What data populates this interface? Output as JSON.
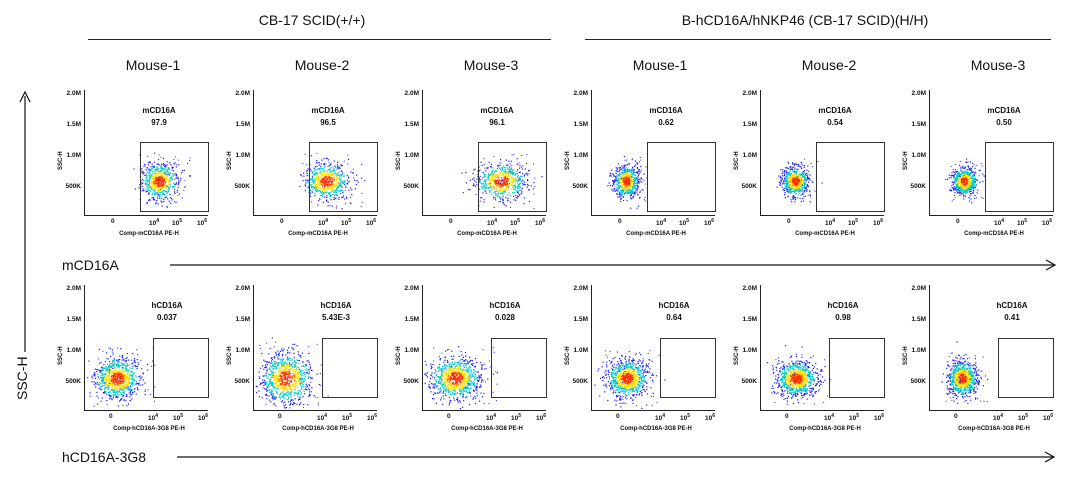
{
  "groups": [
    {
      "title": "CB-17 SCID(+/+)"
    },
    {
      "title": "B-hCD16A/hNKP46 (CB-17 SCID)(H/H)"
    }
  ],
  "mouse_labels": [
    "Mouse-1",
    "Mouse-2",
    "Mouse-3",
    "Mouse-1",
    "Mouse-2",
    "Mouse-3"
  ],
  "y_axis_outer": "SSC-H",
  "row_axis_labels": [
    "mCD16A",
    "hCD16A-3G8"
  ],
  "panel_axes": {
    "y_title": "SSC-H",
    "y_ticks": [
      "2.0M",
      "1.5M",
      "1.0M",
      "500K"
    ],
    "x_ticks": [
      "0",
      "10",
      "10",
      "10"
    ],
    "x_tick_exponents": [
      "",
      "4",
      "5",
      "6"
    ],
    "x_titles": [
      "Comp-mCD16A PE-H",
      "Comp-hCD16A-3G8 PE-H"
    ]
  },
  "colors": {
    "density_low": "#1a1aff",
    "density_mid": "#00c8c8",
    "density_high": "#ffe000",
    "density_peak": "#ff3000"
  },
  "chart_data": [
    {
      "type": "scatter",
      "row": "mCD16A",
      "group": "CB-17 SCID(+/+)",
      "mouse": "Mouse-1",
      "gate_label": "mCD16A",
      "gate_percent": "97.9"
    },
    {
      "type": "scatter",
      "row": "mCD16A",
      "group": "CB-17 SCID(+/+)",
      "mouse": "Mouse-2",
      "gate_label": "mCD16A",
      "gate_percent": "96.5"
    },
    {
      "type": "scatter",
      "row": "mCD16A",
      "group": "CB-17 SCID(+/+)",
      "mouse": "Mouse-3",
      "gate_label": "mCD16A",
      "gate_percent": "96.1"
    },
    {
      "type": "scatter",
      "row": "mCD16A",
      "group": "B-hCD16A/hNKP46 (CB-17 SCID)(H/H)",
      "mouse": "Mouse-1",
      "gate_label": "mCD16A",
      "gate_percent": "0.62"
    },
    {
      "type": "scatter",
      "row": "mCD16A",
      "group": "B-hCD16A/hNKP46 (CB-17 SCID)(H/H)",
      "mouse": "Mouse-2",
      "gate_label": "mCD16A",
      "gate_percent": "0.54"
    },
    {
      "type": "scatter",
      "row": "mCD16A",
      "group": "B-hCD16A/hNKP46 (CB-17 SCID)(H/H)",
      "mouse": "Mouse-3",
      "gate_label": "mCD16A",
      "gate_percent": "0.50"
    },
    {
      "type": "scatter",
      "row": "hCD16A-3G8",
      "group": "CB-17 SCID(+/+)",
      "mouse": "Mouse-1",
      "gate_label": "hCD16A",
      "gate_percent": "0.037"
    },
    {
      "type": "scatter",
      "row": "hCD16A-3G8",
      "group": "CB-17 SCID(+/+)",
      "mouse": "Mouse-2",
      "gate_label": "hCD16A",
      "gate_percent": "5.43E-3"
    },
    {
      "type": "scatter",
      "row": "hCD16A-3G8",
      "group": "CB-17 SCID(+/+)",
      "mouse": "Mouse-3",
      "gate_label": "hCD16A",
      "gate_percent": "0.028"
    },
    {
      "type": "scatter",
      "row": "hCD16A-3G8",
      "group": "B-hCD16A/hNKP46 (CB-17 SCID)(H/H)",
      "mouse": "Mouse-1",
      "gate_label": "hCD16A",
      "gate_percent": "0.64"
    },
    {
      "type": "scatter",
      "row": "hCD16A-3G8",
      "group": "B-hCD16A/hNKP46 (CB-17 SCID)(H/H)",
      "mouse": "Mouse-2",
      "gate_label": "hCD16A",
      "gate_percent": "0.98"
    },
    {
      "type": "scatter",
      "row": "hCD16A-3G8",
      "group": "B-hCD16A/hNKP46 (CB-17 SCID)(H/H)",
      "mouse": "Mouse-3",
      "gate_label": "hCD16A",
      "gate_percent": "0.41"
    }
  ]
}
